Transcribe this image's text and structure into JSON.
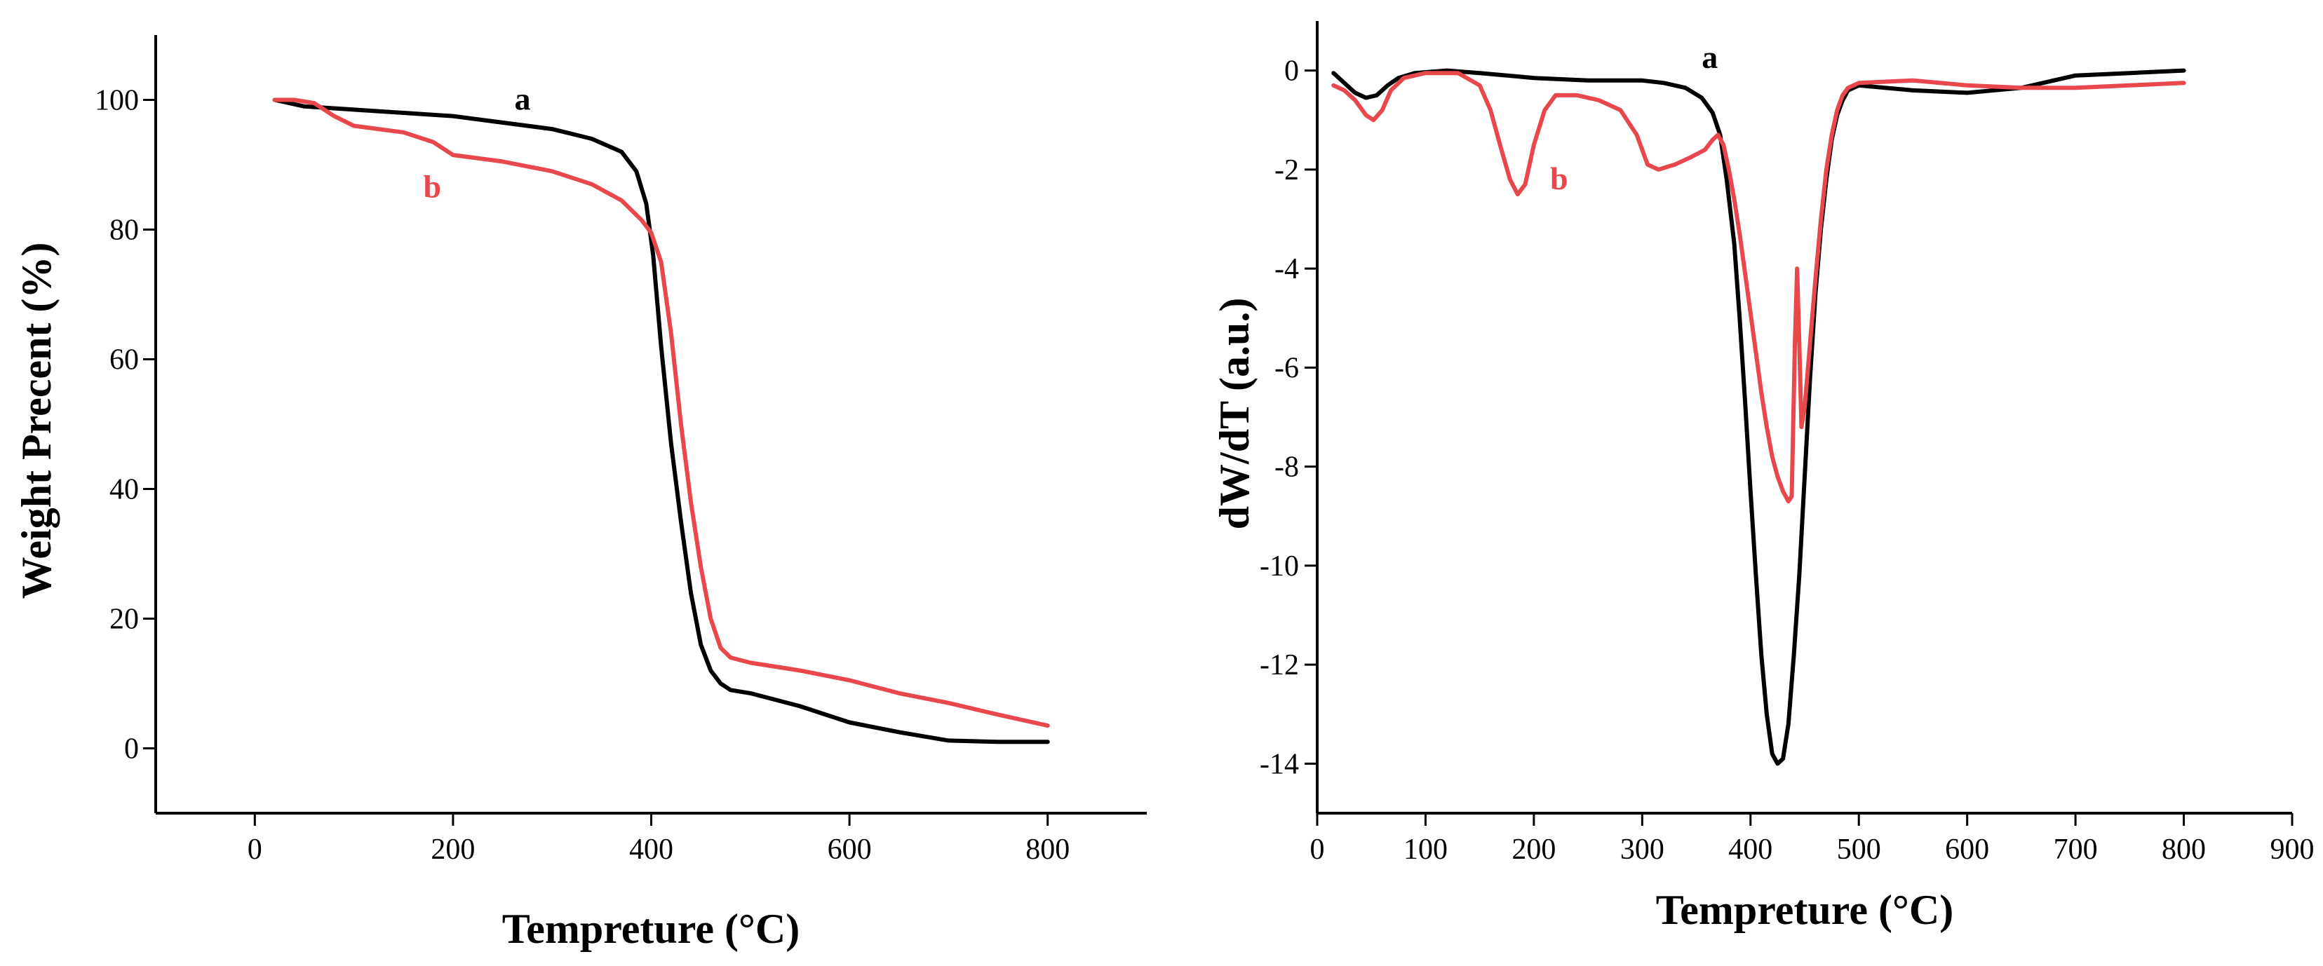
{
  "colors": {
    "a": "#000000",
    "b": "#e8474c"
  },
  "chart_data": [
    {
      "type": "line",
      "title": "",
      "xlabel": "Tempreture (°C)",
      "ylabel": "Weight Precent (%)",
      "xlim": [
        -100,
        900
      ],
      "ylim": [
        -10,
        110
      ],
      "xticks": [
        0,
        200,
        400,
        600,
        800
      ],
      "yticks": [
        0,
        20,
        40,
        60,
        80,
        100
      ],
      "series": [
        {
          "name": "a",
          "color": "#000000",
          "x": [
            20,
            50,
            100,
            150,
            200,
            250,
            300,
            340,
            370,
            385,
            395,
            402,
            410,
            420,
            430,
            440,
            450,
            460,
            470,
            480,
            500,
            550,
            600,
            650,
            700,
            750,
            800
          ],
          "y": [
            100,
            99,
            98.5,
            98,
            97.5,
            96.5,
            95.5,
            94,
            92,
            89,
            84,
            76,
            62,
            47,
            35,
            24,
            16,
            12,
            10,
            9,
            8.5,
            6.5,
            4,
            2.5,
            1.2,
            1,
            1
          ]
        },
        {
          "name": "b",
          "color": "#e8474c",
          "x": [
            20,
            40,
            60,
            80,
            100,
            150,
            180,
            200,
            250,
            300,
            340,
            370,
            390,
            400,
            410,
            420,
            430,
            440,
            450,
            460,
            470,
            480,
            500,
            550,
            600,
            650,
            700,
            750,
            800
          ],
          "y": [
            100,
            100,
            99.5,
            97.5,
            96,
            95,
            93.5,
            91.5,
            90.5,
            89,
            87,
            84.5,
            81.5,
            79.5,
            75,
            64,
            50,
            38,
            28,
            20,
            15.5,
            14,
            13.2,
            12,
            10.5,
            8.5,
            7,
            5.2,
            3.5
          ]
        }
      ],
      "annotations": [
        {
          "text": "a",
          "x": 262,
          "y": 98.5,
          "color": "#000000"
        },
        {
          "text": "b",
          "x": 170,
          "y": 85,
          "color": "#e8474c"
        }
      ]
    },
    {
      "type": "line",
      "title": "",
      "xlabel": "Tempreture (°C)",
      "ylabel": "dW/dT (a.u.)",
      "xlim": [
        0,
        900
      ],
      "ylim": [
        -15,
        1
      ],
      "xticks": [
        0,
        100,
        200,
        300,
        400,
        500,
        600,
        700,
        800,
        900
      ],
      "yticks": [
        0,
        -2,
        -4,
        -6,
        -8,
        -10,
        -12,
        -14
      ],
      "series": [
        {
          "name": "a",
          "color": "#000000",
          "x": [
            15,
            25,
            35,
            45,
            55,
            65,
            75,
            90,
            120,
            150,
            200,
            250,
            300,
            320,
            340,
            355,
            365,
            372,
            378,
            385,
            390,
            395,
            400,
            405,
            410,
            415,
            420,
            425,
            430,
            435,
            440,
            445,
            450,
            455,
            460,
            465,
            470,
            475,
            480,
            485,
            490,
            500,
            550,
            600,
            650,
            700,
            750,
            800
          ],
          "y": [
            -0.05,
            -0.25,
            -0.45,
            -0.55,
            -0.5,
            -0.3,
            -0.15,
            -0.05,
            0,
            -0.05,
            -0.15,
            -0.2,
            -0.2,
            -0.25,
            -0.35,
            -0.55,
            -0.85,
            -1.3,
            -2.2,
            -3.5,
            -5,
            -6.7,
            -8.5,
            -10.2,
            -11.8,
            -13,
            -13.8,
            -14,
            -13.9,
            -13.2,
            -11.8,
            -10.2,
            -8.2,
            -6.2,
            -4.5,
            -3.2,
            -2.2,
            -1.4,
            -0.9,
            -0.6,
            -0.4,
            -0.3,
            -0.4,
            -0.45,
            -0.35,
            -0.1,
            -0.05,
            0
          ]
        },
        {
          "name": "b",
          "color": "#e8474c",
          "x": [
            15,
            25,
            35,
            45,
            52,
            60,
            68,
            80,
            100,
            130,
            150,
            160,
            170,
            178,
            185,
            192,
            200,
            210,
            220,
            240,
            260,
            280,
            295,
            305,
            315,
            330,
            345,
            358,
            365,
            370,
            375,
            380,
            385,
            390,
            395,
            400,
            405,
            410,
            415,
            420,
            425,
            430,
            435,
            438,
            441,
            443,
            445,
            447,
            450,
            455,
            460,
            465,
            470,
            475,
            480,
            485,
            490,
            500,
            550,
            600,
            650,
            700,
            750,
            800
          ],
          "y": [
            -0.3,
            -0.4,
            -0.6,
            -0.9,
            -1.0,
            -0.8,
            -0.4,
            -0.15,
            -0.05,
            -0.05,
            -0.3,
            -0.8,
            -1.6,
            -2.2,
            -2.5,
            -2.3,
            -1.5,
            -0.8,
            -0.5,
            -0.5,
            -0.6,
            -0.8,
            -1.3,
            -1.9,
            -2.0,
            -1.9,
            -1.75,
            -1.6,
            -1.4,
            -1.3,
            -1.5,
            -2.0,
            -2.6,
            -3.3,
            -4.1,
            -4.9,
            -5.7,
            -6.5,
            -7.2,
            -7.8,
            -8.2,
            -8.5,
            -8.7,
            -8.6,
            -5.5,
            -4.0,
            -5.5,
            -7.2,
            -6.8,
            -5.5,
            -4.2,
            -3.0,
            -2.0,
            -1.3,
            -0.8,
            -0.5,
            -0.35,
            -0.25,
            -0.2,
            -0.3,
            -0.35,
            -0.35,
            -0.3,
            -0.25
          ]
        }
      ],
      "annotations": [
        {
          "text": "a",
          "x": 355,
          "y": 0.05,
          "color": "#000000"
        },
        {
          "text": "b",
          "x": 215,
          "y": -2.4,
          "color": "#e8474c"
        }
      ]
    }
  ]
}
